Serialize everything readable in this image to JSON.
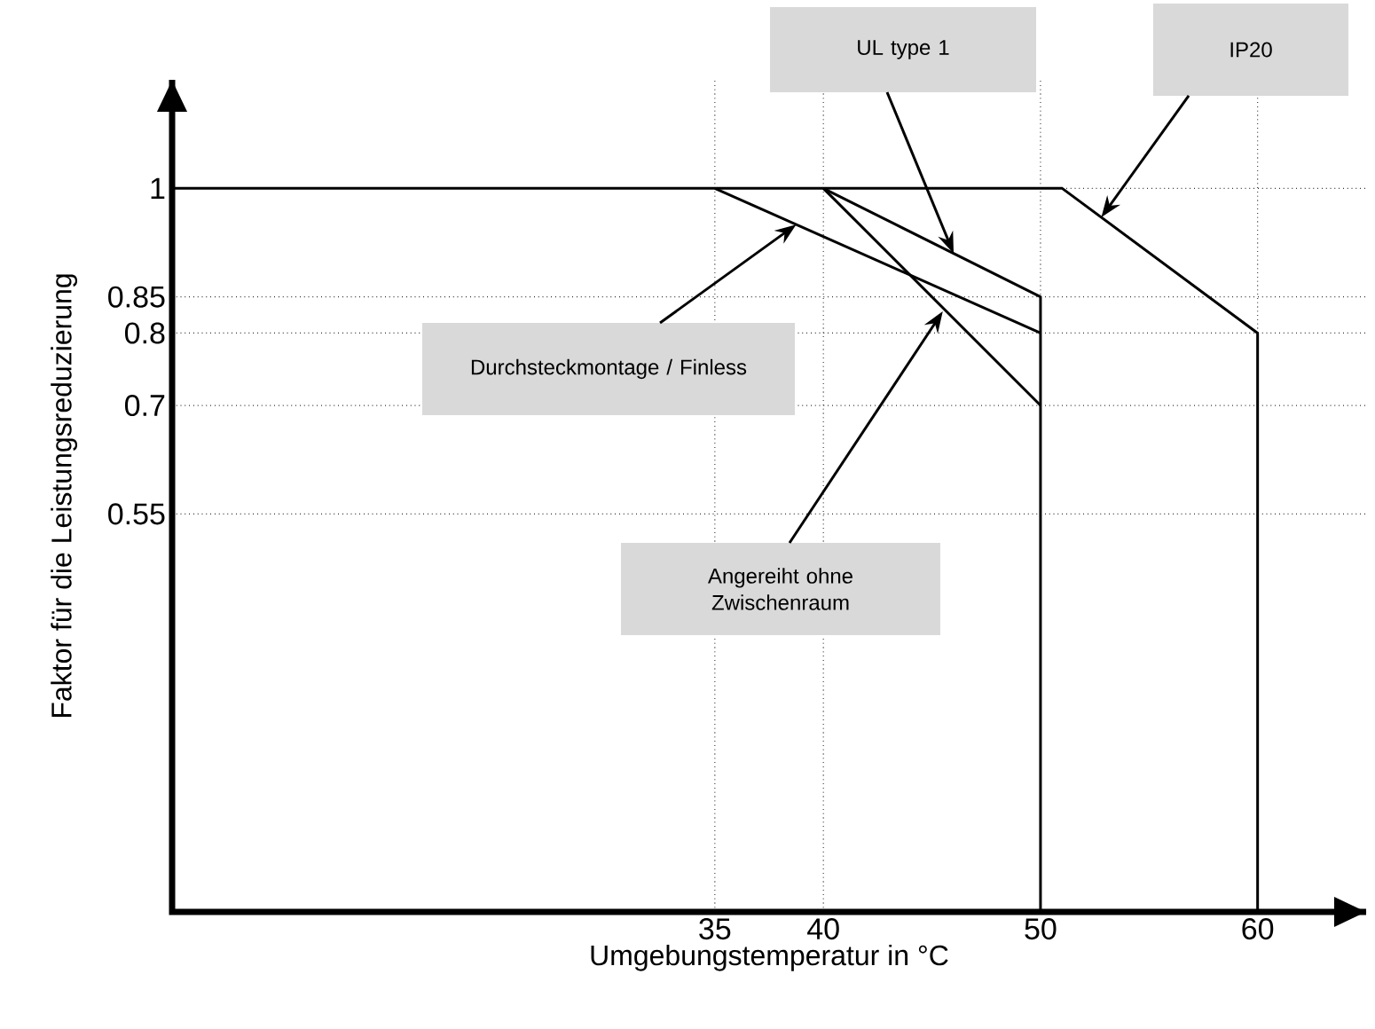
{
  "chart_data": {
    "type": "line",
    "xlabel": "Umgebungstemperatur in °C",
    "ylabel": "Faktor für die Leistungsreduzierung",
    "xlim": [
      10,
      65
    ],
    "ylim": [
      0,
      1.15
    ],
    "xticks": [
      35,
      40,
      50,
      60
    ],
    "yticks": [
      0.55,
      0.7,
      0.8,
      0.85,
      1
    ],
    "grid": true,
    "series": [
      {
        "color": "#000000",
        "x": [
          10,
          51,
          60,
          60
        ],
        "values": [
          1,
          1,
          0.8,
          0
        ]
      },
      {
        "color": "#000000",
        "x": [
          40,
          50,
          50
        ],
        "values": [
          1,
          0.85,
          0
        ]
      },
      {
        "color": "#000000",
        "x": [
          35,
          50
        ],
        "values": [
          1,
          0.8
        ]
      },
      {
        "color": "#000000",
        "x": [
          40,
          50
        ],
        "values": [
          1,
          0.7
        ]
      }
    ],
    "annotations": [
      "UL type 1",
      "IP20",
      "Durchsteckmontage / Finless",
      {
        "text": "Angereiht ohne Zwischenraum",
        "x": 45.5,
        "y": 0.83
      }
    ]
  }
}
